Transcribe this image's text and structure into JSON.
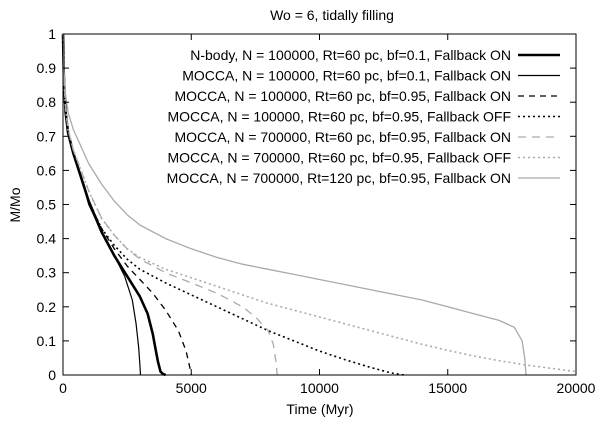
{
  "chart_data": {
    "type": "line",
    "title": "Wo = 6, tidally filling",
    "xlabel": "Time (Myr)",
    "ylabel": "M/Mo",
    "xlim": [
      0,
      20000
    ],
    "ylim": [
      0,
      1
    ],
    "x_ticks": [
      0,
      5000,
      10000,
      15000,
      20000
    ],
    "y_ticks": [
      0,
      0.1,
      0.2,
      0.3,
      0.4,
      0.5,
      0.6,
      0.7,
      0.8,
      0.9,
      1
    ],
    "grid": false,
    "legend_position": "top-right",
    "series": [
      {
        "name": "N-body, N = 100000, Rt=60 pc, bf=0.1, Fallback ON",
        "style": {
          "color": "#000000",
          "width": 2.6,
          "dash": ""
        },
        "points": [
          [
            0,
            1.0
          ],
          [
            30,
            0.88
          ],
          [
            100,
            0.77
          ],
          [
            200,
            0.71
          ],
          [
            400,
            0.65
          ],
          [
            700,
            0.58
          ],
          [
            1000,
            0.51
          ],
          [
            1500,
            0.42
          ],
          [
            2000,
            0.35
          ],
          [
            2500,
            0.29
          ],
          [
            3000,
            0.23
          ],
          [
            3300,
            0.18
          ],
          [
            3500,
            0.12
          ],
          [
            3600,
            0.08
          ],
          [
            3700,
            0.04
          ],
          [
            3800,
            0.01
          ],
          [
            3900,
            0.003
          ],
          [
            4000,
            0.0
          ]
        ]
      },
      {
        "name": "MOCCA, N = 100000, Rt=60 pc, bf=0.1, Fallback ON",
        "style": {
          "color": "#000000",
          "width": 1.2,
          "dash": ""
        },
        "points": [
          [
            0,
            1.0
          ],
          [
            30,
            0.88
          ],
          [
            100,
            0.77
          ],
          [
            200,
            0.71
          ],
          [
            400,
            0.65
          ],
          [
            700,
            0.58
          ],
          [
            1000,
            0.5
          ],
          [
            1500,
            0.42
          ],
          [
            2000,
            0.35
          ],
          [
            2400,
            0.29
          ],
          [
            2700,
            0.22
          ],
          [
            2850,
            0.15
          ],
          [
            2950,
            0.08
          ],
          [
            3000,
            0.03
          ],
          [
            3020,
            0.0
          ]
        ]
      },
      {
        "name": "MOCCA, N = 100000, Rt=60 pc, bf=0.95, Fallback ON",
        "style": {
          "color": "#000000",
          "width": 1.3,
          "dash": "6,5"
        },
        "points": [
          [
            0,
            1.0
          ],
          [
            30,
            0.88
          ],
          [
            100,
            0.77
          ],
          [
            200,
            0.71
          ],
          [
            400,
            0.65
          ],
          [
            700,
            0.58
          ],
          [
            1000,
            0.51
          ],
          [
            1500,
            0.43
          ],
          [
            2000,
            0.37
          ],
          [
            2500,
            0.32
          ],
          [
            3000,
            0.28
          ],
          [
            3500,
            0.24
          ],
          [
            4000,
            0.19
          ],
          [
            4500,
            0.13
          ],
          [
            4800,
            0.07
          ],
          [
            4950,
            0.02
          ],
          [
            5000,
            0.0
          ]
        ]
      },
      {
        "name": "MOCCA, N = 100000, Rt=60 pc, bf=0.95, Fallback OFF",
        "style": {
          "color": "#000000",
          "width": 1.6,
          "dash": "2,3"
        },
        "points": [
          [
            0,
            1.0
          ],
          [
            30,
            0.88
          ],
          [
            100,
            0.77
          ],
          [
            200,
            0.71
          ],
          [
            400,
            0.65
          ],
          [
            700,
            0.58
          ],
          [
            1000,
            0.51
          ],
          [
            1500,
            0.43
          ],
          [
            2000,
            0.38
          ],
          [
            2500,
            0.34
          ],
          [
            3000,
            0.31
          ],
          [
            4000,
            0.27
          ],
          [
            5000,
            0.235
          ],
          [
            6000,
            0.2
          ],
          [
            7000,
            0.165
          ],
          [
            8000,
            0.13
          ],
          [
            9000,
            0.1
          ],
          [
            10000,
            0.07
          ],
          [
            11000,
            0.045
          ],
          [
            12000,
            0.022
          ],
          [
            12800,
            0.006
          ],
          [
            13300,
            0.0
          ]
        ]
      },
      {
        "name": "MOCCA, N = 700000, Rt=60 pc, bf=0.95, Fallback ON",
        "style": {
          "color": "#aaaaaa",
          "width": 1.3,
          "dash": "8,6"
        },
        "points": [
          [
            0,
            1.0
          ],
          [
            30,
            0.88
          ],
          [
            100,
            0.78
          ],
          [
            200,
            0.72
          ],
          [
            400,
            0.66
          ],
          [
            700,
            0.6
          ],
          [
            1000,
            0.54
          ],
          [
            1500,
            0.46
          ],
          [
            2000,
            0.41
          ],
          [
            2500,
            0.37
          ],
          [
            3000,
            0.34
          ],
          [
            4000,
            0.3
          ],
          [
            5000,
            0.27
          ],
          [
            6000,
            0.24
          ],
          [
            7000,
            0.2
          ],
          [
            7500,
            0.17
          ],
          [
            8000,
            0.13
          ],
          [
            8200,
            0.09
          ],
          [
            8300,
            0.04
          ],
          [
            8350,
            0.0
          ]
        ]
      },
      {
        "name": "MOCCA, N = 700000, Rt=60 pc, bf=0.95, Fallback OFF",
        "style": {
          "color": "#aaaaaa",
          "width": 1.6,
          "dash": "2,3"
        },
        "points": [
          [
            0,
            1.0
          ],
          [
            30,
            0.88
          ],
          [
            100,
            0.78
          ],
          [
            200,
            0.72
          ],
          [
            400,
            0.66
          ],
          [
            700,
            0.6
          ],
          [
            1000,
            0.54
          ],
          [
            1500,
            0.46
          ],
          [
            2000,
            0.41
          ],
          [
            2500,
            0.37
          ],
          [
            3000,
            0.345
          ],
          [
            4000,
            0.31
          ],
          [
            5000,
            0.285
          ],
          [
            6000,
            0.26
          ],
          [
            7000,
            0.235
          ],
          [
            8000,
            0.21
          ],
          [
            9000,
            0.19
          ],
          [
            10000,
            0.17
          ],
          [
            11000,
            0.15
          ],
          [
            12000,
            0.13
          ],
          [
            13000,
            0.11
          ],
          [
            14000,
            0.09
          ],
          [
            15000,
            0.072
          ],
          [
            16000,
            0.056
          ],
          [
            17000,
            0.042
          ],
          [
            18000,
            0.03
          ],
          [
            19000,
            0.02
          ],
          [
            20000,
            0.01
          ]
        ]
      },
      {
        "name": "MOCCA, N = 700000, Rt=120 pc, bf=0.95, Fallback ON",
        "style": {
          "color": "#aaaaaa",
          "width": 1.3,
          "dash": ""
        },
        "points": [
          [
            0,
            1.0
          ],
          [
            30,
            0.9
          ],
          [
            100,
            0.82
          ],
          [
            200,
            0.77
          ],
          [
            400,
            0.72
          ],
          [
            700,
            0.67
          ],
          [
            1000,
            0.62
          ],
          [
            1500,
            0.56
          ],
          [
            2000,
            0.51
          ],
          [
            2500,
            0.47
          ],
          [
            3000,
            0.44
          ],
          [
            4000,
            0.4
          ],
          [
            5000,
            0.37
          ],
          [
            6000,
            0.345
          ],
          [
            7000,
            0.325
          ],
          [
            8000,
            0.31
          ],
          [
            9000,
            0.295
          ],
          [
            10000,
            0.28
          ],
          [
            11000,
            0.265
          ],
          [
            12000,
            0.25
          ],
          [
            13000,
            0.235
          ],
          [
            14000,
            0.22
          ],
          [
            15000,
            0.2
          ],
          [
            16000,
            0.18
          ],
          [
            17000,
            0.16
          ],
          [
            17600,
            0.14
          ],
          [
            17900,
            0.1
          ],
          [
            18000,
            0.05
          ],
          [
            18050,
            0.0
          ]
        ]
      }
    ]
  }
}
